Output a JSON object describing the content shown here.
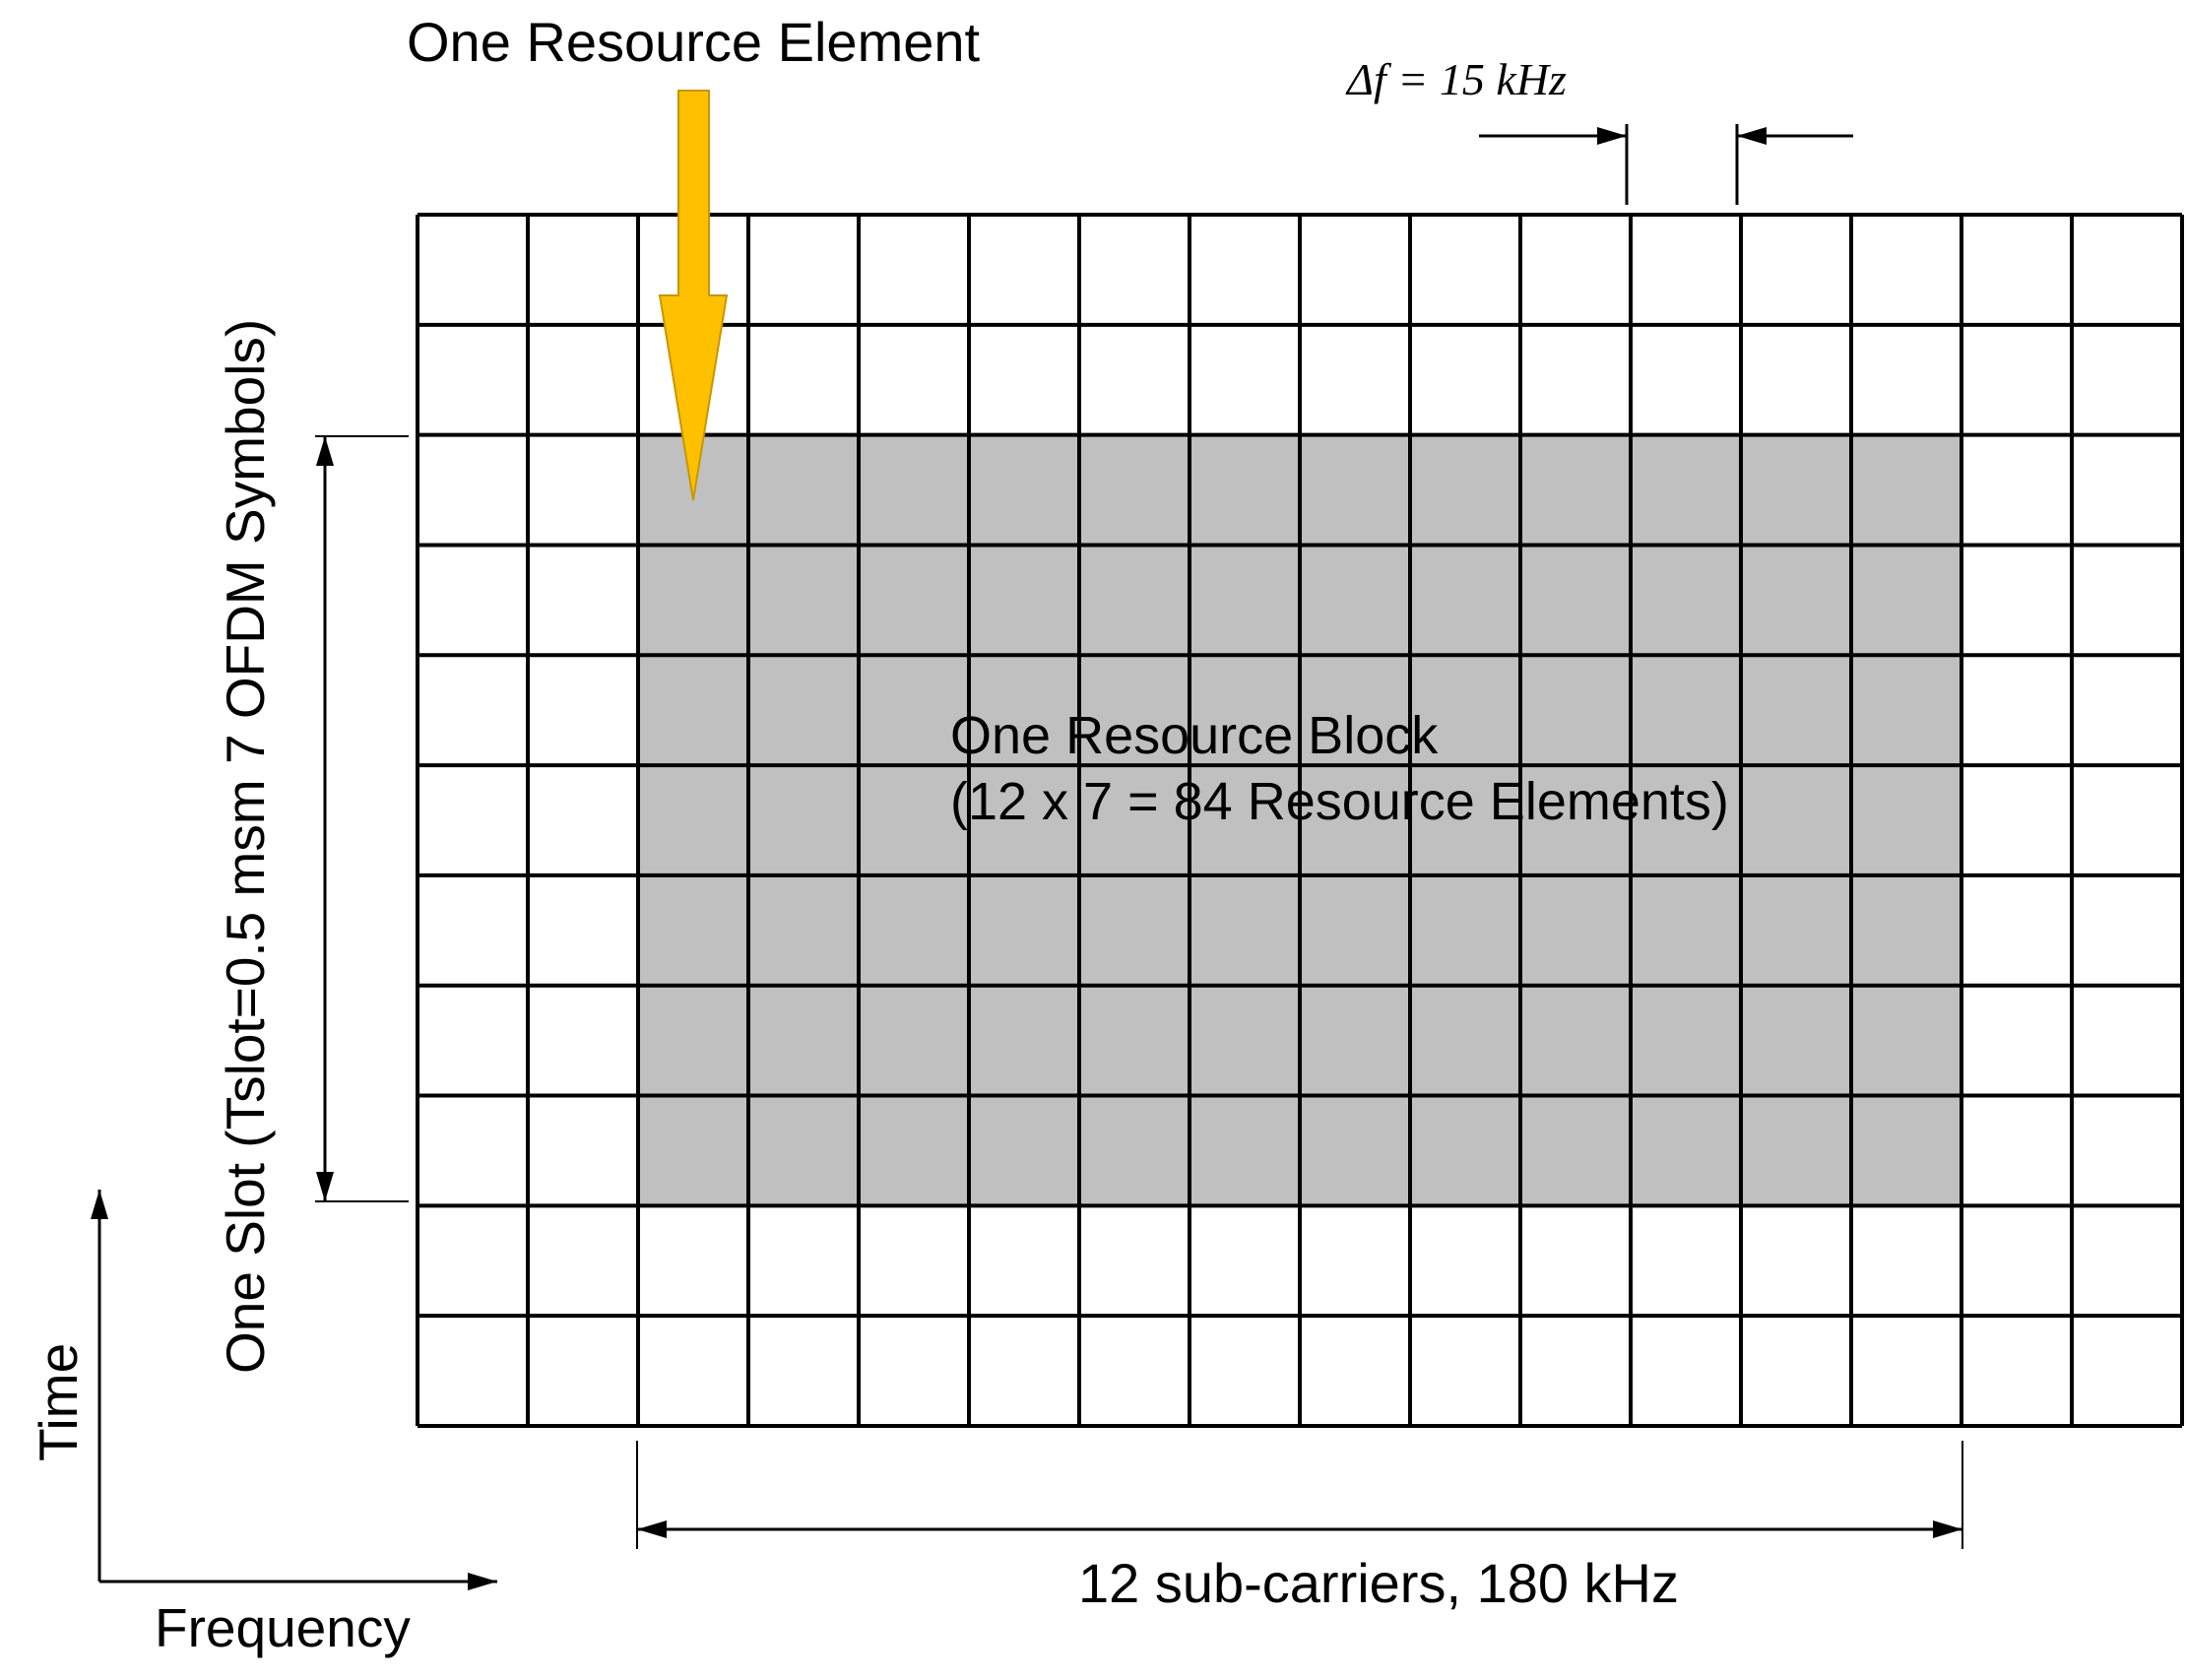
{
  "resource_element_label": "One Resource Element",
  "delta_f_label": "Δf = 15 kHz",
  "slot_label": "One Slot (Tslot=0.5 msm 7 OFDM Symbols)",
  "resource_block": {
    "line1": "One Resource Block",
    "line2": "(12 x 7 = 84 Resource Elements)"
  },
  "subcarriers_label": "12 sub-carriers, 180 kHz",
  "time_axis_label": "Time",
  "frequency_axis_label": "Frequency",
  "grid": {
    "columns": 16,
    "rows": 11,
    "block_first_column": 2,
    "block_columns": 12,
    "block_first_row": 2,
    "block_rows": 7
  },
  "colors": {
    "grid_line": "#000000",
    "block_fill": "#c0c0c0",
    "arrow_fill": "#ffc000",
    "arrow_stroke": "#c89600",
    "block_text": "#ffff00"
  }
}
